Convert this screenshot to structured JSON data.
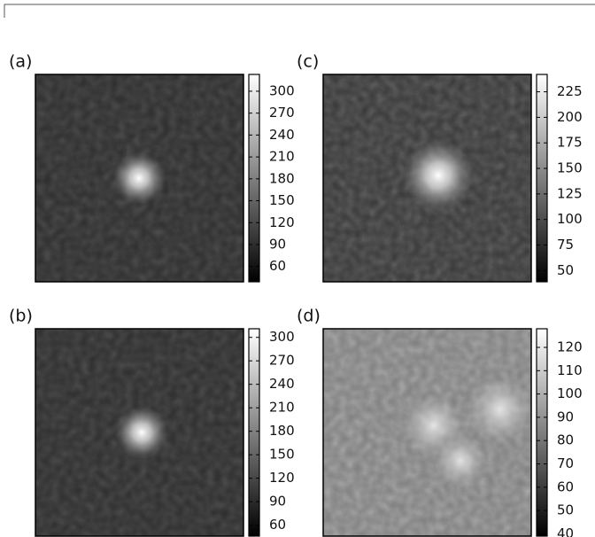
{
  "chart_data": [
    {
      "type": "image",
      "title": "(a)",
      "clim": [
        39,
        323
      ],
      "cticks": [
        60,
        90,
        120,
        150,
        180,
        210,
        240,
        270,
        300
      ]
    },
    {
      "type": "image",
      "title": "(b)",
      "clim": [
        46,
        311
      ],
      "cticks": [
        60,
        90,
        120,
        150,
        180,
        210,
        240,
        270,
        300
      ]
    },
    {
      "type": "image",
      "title": "(c)",
      "clim": [
        39,
        242
      ],
      "cticks": [
        50,
        75,
        100,
        125,
        150,
        175,
        200,
        225
      ]
    },
    {
      "type": "image",
      "title": "(d)",
      "clim": [
        39,
        128
      ],
      "cticks": [
        40,
        50,
        60,
        70,
        80,
        90,
        100,
        110,
        120
      ]
    }
  ]
}
